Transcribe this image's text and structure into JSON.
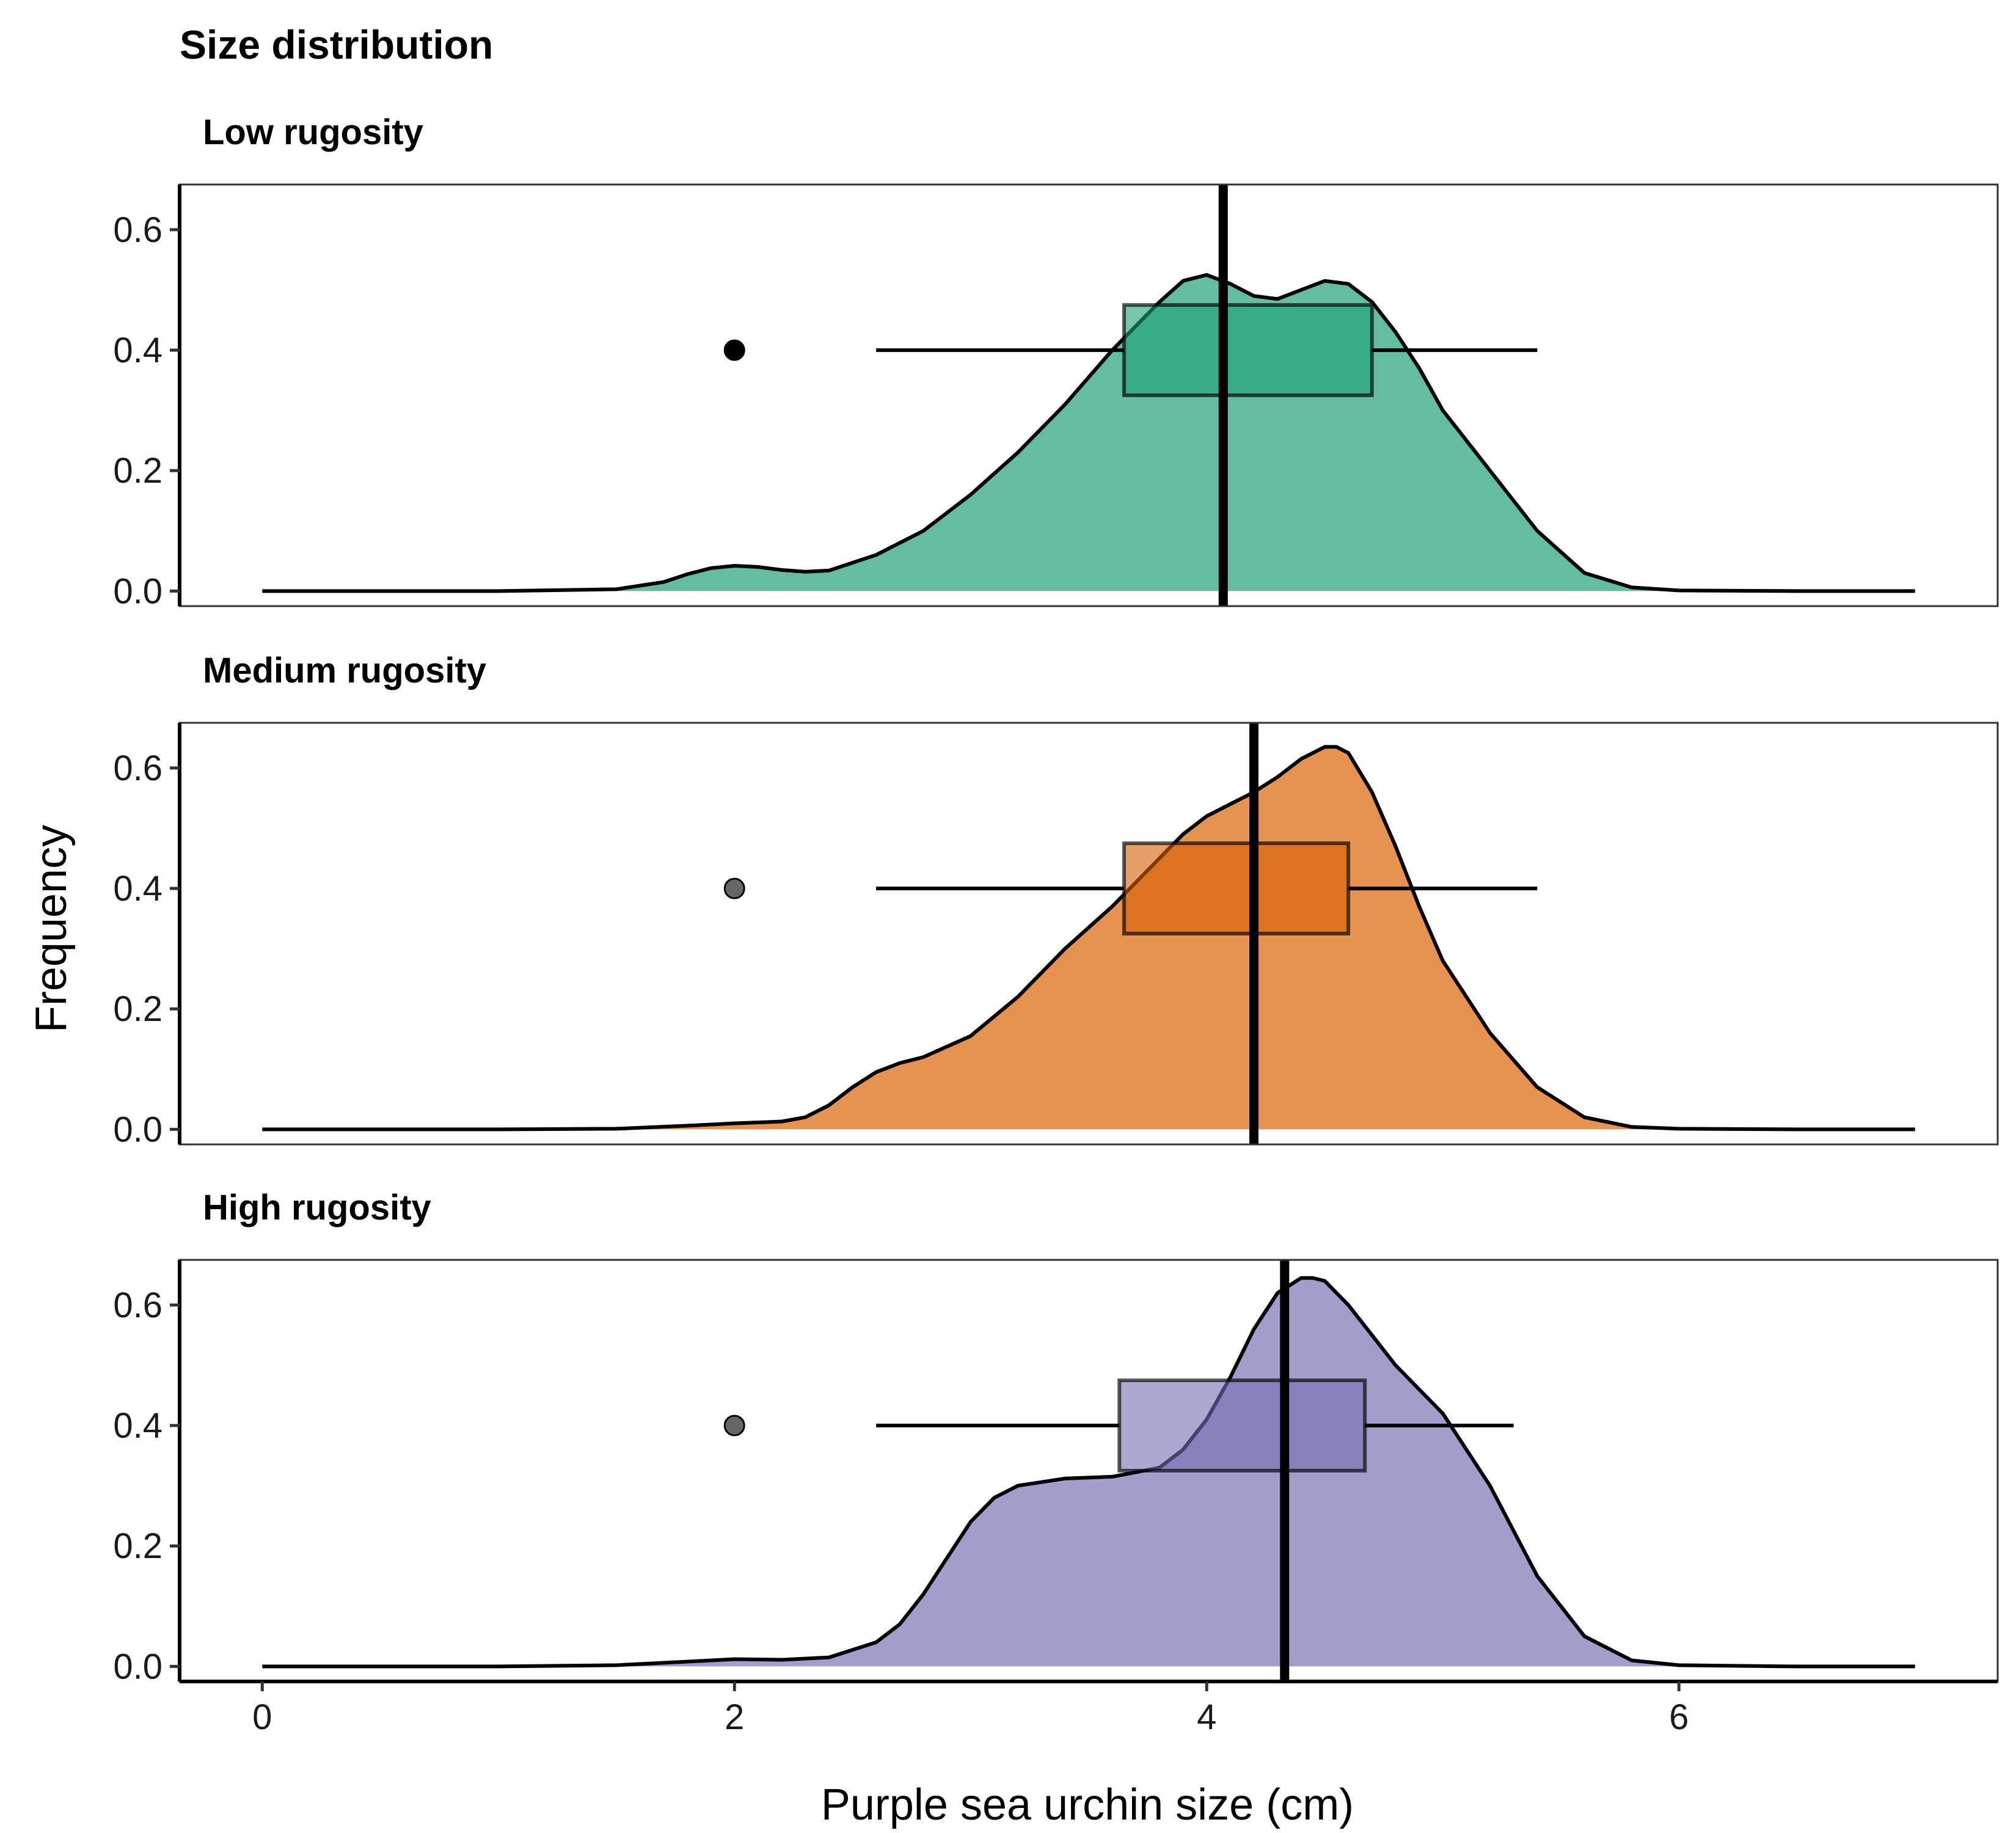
{
  "chart_data": {
    "type": "area",
    "title": "Size distribution",
    "xlabel": "Purple sea urchin size (cm)",
    "ylabel": "Frequency",
    "xlim": [
      -0.35,
      7.35
    ],
    "ylim": [
      -0.025,
      0.675
    ],
    "x_ticks": [
      0,
      2,
      4,
      6
    ],
    "y_ticks": [
      0.0,
      0.2,
      0.4,
      0.6
    ],
    "y_tick_labels": [
      "0.0",
      "0.2",
      "0.4",
      "0.6"
    ],
    "grid": false,
    "legend": "none",
    "panels": [
      {
        "label": "Low rugosity",
        "fill_color": "#1b9e77",
        "density": {
          "x": [
            0,
            1.0,
            1.5,
            1.7,
            1.8,
            1.9,
            2.0,
            2.1,
            2.2,
            2.3,
            2.4,
            2.6,
            2.8,
            3.0,
            3.2,
            3.4,
            3.6,
            3.8,
            3.9,
            4.0,
            4.1,
            4.2,
            4.3,
            4.4,
            4.5,
            4.6,
            4.7,
            4.8,
            4.9,
            5.0,
            5.2,
            5.4,
            5.6,
            5.8,
            6.0,
            6.5,
            7.0
          ],
          "y": [
            0,
            0,
            0.003,
            0.015,
            0.028,
            0.038,
            0.042,
            0.04,
            0.035,
            0.032,
            0.034,
            0.06,
            0.1,
            0.16,
            0.23,
            0.31,
            0.4,
            0.48,
            0.515,
            0.525,
            0.51,
            0.49,
            0.485,
            0.5,
            0.515,
            0.51,
            0.48,
            0.43,
            0.37,
            0.3,
            0.2,
            0.1,
            0.03,
            0.006,
            0.001,
            0,
            0
          ]
        },
        "boxplot": {
          "whisker_low": 2.6,
          "q1": 3.65,
          "q3": 4.7,
          "whisker_high": 5.4,
          "y": 0.4,
          "height": 0.15
        },
        "outlier": {
          "x": 2.0,
          "y": 0.4
        },
        "mean_line": 4.07
      },
      {
        "label": "Medium rugosity",
        "fill_color": "#d95f02",
        "density": {
          "x": [
            0,
            1.0,
            1.5,
            1.8,
            2.0,
            2.2,
            2.3,
            2.4,
            2.5,
            2.6,
            2.7,
            2.8,
            3.0,
            3.2,
            3.4,
            3.6,
            3.8,
            3.9,
            4.0,
            4.1,
            4.2,
            4.3,
            4.4,
            4.5,
            4.55,
            4.6,
            4.7,
            4.8,
            4.9,
            5.0,
            5.2,
            5.4,
            5.6,
            5.8,
            6.0,
            6.5,
            7.0
          ],
          "y": [
            0,
            0,
            0.001,
            0.006,
            0.01,
            0.013,
            0.02,
            0.04,
            0.07,
            0.095,
            0.11,
            0.12,
            0.155,
            0.22,
            0.3,
            0.37,
            0.45,
            0.49,
            0.52,
            0.54,
            0.56,
            0.585,
            0.615,
            0.635,
            0.635,
            0.625,
            0.56,
            0.47,
            0.37,
            0.28,
            0.16,
            0.07,
            0.02,
            0.004,
            0.001,
            0,
            0
          ]
        },
        "boxplot": {
          "whisker_low": 2.6,
          "q1": 3.65,
          "q3": 4.6,
          "whisker_high": 5.4,
          "y": 0.4,
          "height": 0.15
        },
        "outlier": {
          "x": 2.0,
          "y": 0.4
        },
        "mean_line": 4.2
      },
      {
        "label": "High rugosity",
        "fill_color": "#7570b3",
        "density": {
          "x": [
            0,
            1.0,
            1.5,
            1.8,
            2.0,
            2.2,
            2.4,
            2.6,
            2.7,
            2.8,
            2.9,
            3.0,
            3.1,
            3.2,
            3.4,
            3.6,
            3.8,
            3.9,
            4.0,
            4.1,
            4.2,
            4.3,
            4.4,
            4.45,
            4.5,
            4.6,
            4.7,
            4.8,
            5.0,
            5.2,
            5.4,
            5.6,
            5.8,
            6.0,
            6.5,
            7.0
          ],
          "y": [
            0,
            0,
            0.002,
            0.008,
            0.012,
            0.011,
            0.015,
            0.04,
            0.07,
            0.12,
            0.18,
            0.24,
            0.28,
            0.3,
            0.312,
            0.315,
            0.33,
            0.36,
            0.41,
            0.48,
            0.56,
            0.62,
            0.645,
            0.645,
            0.64,
            0.6,
            0.55,
            0.5,
            0.42,
            0.3,
            0.15,
            0.05,
            0.01,
            0.002,
            0,
            0
          ]
        },
        "boxplot": {
          "whisker_low": 2.6,
          "q1": 3.63,
          "q3": 4.67,
          "whisker_high": 5.3,
          "y": 0.4,
          "height": 0.15
        },
        "outlier": {
          "x": 2.0,
          "y": 0.4
        },
        "mean_line": 4.33
      }
    ]
  }
}
